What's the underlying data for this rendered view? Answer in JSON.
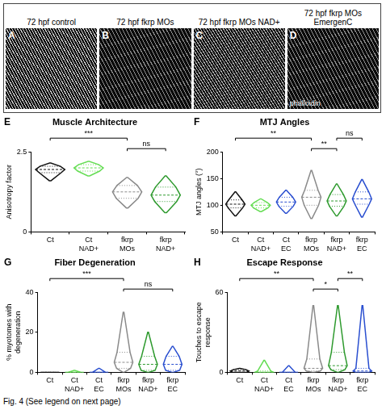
{
  "images": [
    {
      "letter": "A",
      "title": "72 hpf control"
    },
    {
      "letter": "B",
      "title": "72 hpf fkrp MOs"
    },
    {
      "letter": "C",
      "title": "72 hpf fkrp MOs NAD+"
    },
    {
      "letter": "D",
      "title": "72 hpf fkrp MOs EmergenC",
      "label": "phalloidin"
    }
  ],
  "caption": "Fig. 4 (See legend on next page)",
  "chart_data": [
    {
      "type": "violin",
      "letter": "E",
      "title": "Muscle Architecture",
      "y_label": "Anisotropy factor",
      "categories": [
        "Ct",
        "Ct NAD+",
        "fkrp MOs",
        "fkrp NAD+"
      ],
      "colors": [
        "#111111",
        "#66dd55",
        "#8a8a8a",
        "#2e9a2e"
      ],
      "min": [
        1.6,
        1.75,
        0.75,
        0.6
      ],
      "q1": [
        1.85,
        1.9,
        1.05,
        0.95
      ],
      "median": [
        1.95,
        2.0,
        1.25,
        1.15
      ],
      "q3": [
        2.05,
        2.1,
        1.45,
        1.4
      ],
      "max": [
        2.15,
        2.2,
        1.7,
        1.75
      ],
      "ylim": [
        0,
        2.5
      ],
      "yticks": [
        0,
        2.5
      ],
      "grid": false,
      "comparisons": [
        {
          "from": "Ct",
          "to": "fkrp MOs",
          "label": "***"
        },
        {
          "from": "fkrp MOs",
          "to": "fkrp NAD+",
          "label": "ns"
        }
      ]
    },
    {
      "type": "violin",
      "letter": "F",
      "title": "MTJ Angles",
      "y_label": "MTJ angles (°)",
      "categories": [
        "Ct",
        "Ct NAD+",
        "Ct EC",
        "fkrp MOs",
        "fkrp NAD+",
        "fkrp EC"
      ],
      "colors": [
        "#111111",
        "#66dd55",
        "#2a4fd0",
        "#8a8a8a",
        "#2e9a2e",
        "#2a4fd0"
      ],
      "min": [
        80,
        88,
        85,
        75,
        80,
        78
      ],
      "q1": [
        95,
        95,
        98,
        100,
        98,
        102
      ],
      "median": [
        102,
        100,
        106,
        115,
        108,
        112
      ],
      "q3": [
        110,
        105,
        115,
        128,
        120,
        125
      ],
      "max": [
        125,
        112,
        128,
        165,
        140,
        148
      ],
      "ylim": [
        50,
        200
      ],
      "yticks": [
        50,
        100,
        150,
        200
      ],
      "grid": false,
      "comparisons": [
        {
          "from": "Ct",
          "to": "fkrp MOs",
          "label": "**"
        },
        {
          "from": "fkrp MOs",
          "to": "fkrp NAD+",
          "label": "**"
        },
        {
          "from": "fkrp NAD+",
          "to": "fkrp EC",
          "label": "ns"
        }
      ]
    },
    {
      "type": "violin",
      "letter": "G",
      "title": "Fiber Degeneration",
      "y_label": "% myotomes with degeneration",
      "categories": [
        "Ct",
        "Ct NAD+",
        "Ct EC",
        "fkrp MOs",
        "fkrp NAD+",
        "fkrp EC"
      ],
      "colors": [
        "#111111",
        "#66dd55",
        "#2a4fd0",
        "#8a8a8a",
        "#2e9a2e",
        "#2a4fd0"
      ],
      "min": [
        0,
        0,
        0,
        0,
        0,
        0
      ],
      "q1": [
        0,
        0,
        0,
        2,
        1,
        1
      ],
      "median": [
        0,
        0,
        0,
        5,
        4,
        4
      ],
      "q3": [
        0,
        0,
        0,
        10,
        8,
        8
      ],
      "max": [
        0,
        1,
        2,
        30,
        20,
        13
      ],
      "ylim": [
        0,
        40
      ],
      "yticks": [
        0,
        20,
        40
      ],
      "grid": false,
      "comparisons": [
        {
          "from": "Ct",
          "to": "fkrp MOs",
          "label": "***"
        },
        {
          "from": "fkrp MOs",
          "to": "fkrp EC",
          "label": "ns"
        }
      ]
    },
    {
      "type": "violin",
      "letter": "H",
      "title": "Escape Response",
      "y_label": "Touches to escape response",
      "categories": [
        "Ct",
        "Ct NAD+",
        "Ct EC",
        "fkrp MOs",
        "fkrp NAD+",
        "fkrp EC"
      ],
      "colors": [
        "#111111",
        "#66dd55",
        "#2a4fd0",
        "#8a8a8a",
        "#2e9a2e",
        "#2a4fd0"
      ],
      "min": [
        0,
        0,
        0,
        0,
        0,
        0
      ],
      "q1": [
        0,
        0,
        0,
        1,
        2,
        0
      ],
      "median": [
        1,
        0,
        0,
        3,
        5,
        1
      ],
      "q3": [
        2,
        1,
        0,
        10,
        15,
        3
      ],
      "max": [
        3,
        9,
        5,
        50,
        50,
        50
      ],
      "ylim": [
        0,
        60
      ],
      "yticks": [
        0,
        60
      ],
      "grid": false,
      "comparisons": [
        {
          "from": "Ct",
          "to": "fkrp MOs",
          "label": "**"
        },
        {
          "from": "fkrp MOs",
          "to": "fkrp NAD+",
          "label": "*"
        },
        {
          "from": "fkrp NAD+",
          "to": "fkrp EC",
          "label": "**"
        }
      ]
    }
  ]
}
